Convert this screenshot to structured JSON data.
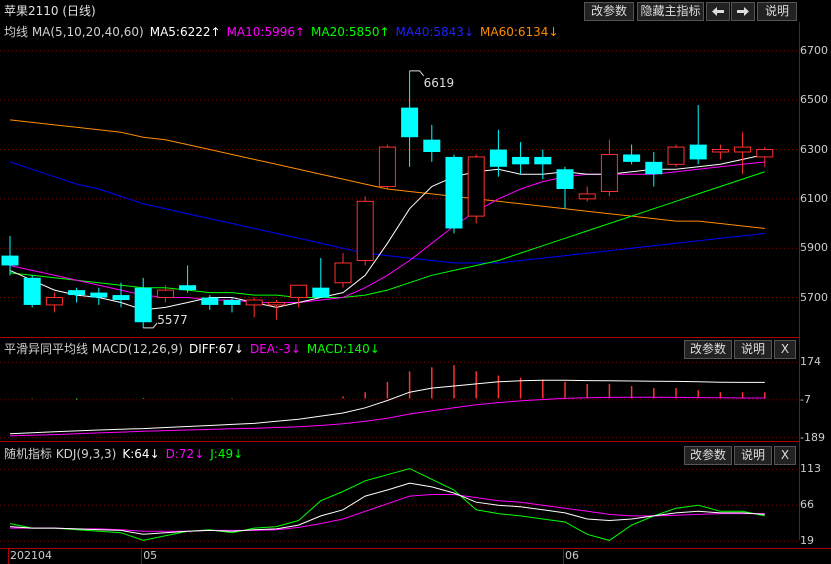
{
  "header": {
    "title": "苹果2110 (日线)",
    "buttons": [
      "改参数",
      "隐藏主指标",
      "说明"
    ]
  },
  "main_panel": {
    "ma_prefix": "均线 MA(5,10,20,40,60)",
    "ma5": "MA5:6222",
    "ma10": "MA10:5996",
    "ma20": "MA20:5850",
    "ma40": "MA40:5843",
    "ma60": "MA60:6134",
    "high_label": "6619",
    "low_label": "5577",
    "yticks": [
      "6700",
      "6500",
      "6300",
      "6100",
      "5900",
      "5700"
    ]
  },
  "macd_panel": {
    "prefix": "平滑异同平均线 MACD(12,26,9)",
    "diff": "DIFF:67",
    "dea": "DEA:-3",
    "macd": "MACD:140",
    "buttons": [
      "改参数",
      "说明",
      "X"
    ],
    "yticks": [
      "174",
      "-7",
      "-189"
    ]
  },
  "kdj_panel": {
    "prefix": "随机指标 KDJ(9,3,3)",
    "k": "K:64",
    "d": "D:72",
    "j": "J:49",
    "buttons": [
      "改参数",
      "说明",
      "X"
    ],
    "yticks": [
      "113",
      "66",
      "19"
    ]
  },
  "xaxis": {
    "labels": [
      "202104",
      "05",
      "06"
    ]
  },
  "colors": {
    "up": "#ff3030",
    "down": "#00ffff",
    "ma5": "#ffffff",
    "ma10": "#ff00ff",
    "ma20": "#00ff00",
    "ma40": "#0000ff",
    "ma60": "#ff8c00"
  },
  "chart_data": {
    "type": "candlestick",
    "ylim": [
      5540,
      6740
    ],
    "candles": [
      {
        "o": 5870,
        "h": 5950,
        "l": 5790,
        "c": 5830
      },
      {
        "o": 5780,
        "h": 5790,
        "l": 5660,
        "c": 5670
      },
      {
        "o": 5670,
        "h": 5720,
        "l": 5640,
        "c": 5700
      },
      {
        "o": 5730,
        "h": 5740,
        "l": 5680,
        "c": 5710
      },
      {
        "o": 5720,
        "h": 5740,
        "l": 5670,
        "c": 5700
      },
      {
        "o": 5710,
        "h": 5760,
        "l": 5660,
        "c": 5690
      },
      {
        "o": 5740,
        "h": 5780,
        "l": 5577,
        "c": 5600
      },
      {
        "o": 5700,
        "h": 5750,
        "l": 5680,
        "c": 5730
      },
      {
        "o": 5750,
        "h": 5830,
        "l": 5720,
        "c": 5730
      },
      {
        "o": 5700,
        "h": 5710,
        "l": 5650,
        "c": 5670
      },
      {
        "o": 5690,
        "h": 5700,
        "l": 5640,
        "c": 5670
      },
      {
        "o": 5670,
        "h": 5700,
        "l": 5620,
        "c": 5690
      },
      {
        "o": 5670,
        "h": 5690,
        "l": 5610,
        "c": 5680
      },
      {
        "o": 5700,
        "h": 5750,
        "l": 5660,
        "c": 5750
      },
      {
        "o": 5740,
        "h": 5860,
        "l": 5700,
        "c": 5700
      },
      {
        "o": 5760,
        "h": 5880,
        "l": 5740,
        "c": 5840
      },
      {
        "o": 5850,
        "h": 6110,
        "l": 5830,
        "c": 6090
      },
      {
        "o": 6150,
        "h": 6320,
        "l": 6140,
        "c": 6310
      },
      {
        "o": 6470,
        "h": 6619,
        "l": 6230,
        "c": 6350
      },
      {
        "o": 6340,
        "h": 6400,
        "l": 6250,
        "c": 6290
      },
      {
        "o": 6270,
        "h": 6280,
        "l": 5960,
        "c": 5980
      },
      {
        "o": 6030,
        "h": 6280,
        "l": 6000,
        "c": 6270
      },
      {
        "o": 6300,
        "h": 6380,
        "l": 6190,
        "c": 6230
      },
      {
        "o": 6270,
        "h": 6330,
        "l": 6200,
        "c": 6240
      },
      {
        "o": 6270,
        "h": 6300,
        "l": 6180,
        "c": 6240
      },
      {
        "o": 6220,
        "h": 6230,
        "l": 6060,
        "c": 6140
      },
      {
        "o": 6100,
        "h": 6150,
        "l": 6090,
        "c": 6120
      },
      {
        "o": 6130,
        "h": 6340,
        "l": 6110,
        "c": 6280
      },
      {
        "o": 6280,
        "h": 6320,
        "l": 6240,
        "c": 6250
      },
      {
        "o": 6250,
        "h": 6290,
        "l": 6150,
        "c": 6200
      },
      {
        "o": 6240,
        "h": 6320,
        "l": 6230,
        "c": 6310
      },
      {
        "o": 6320,
        "h": 6480,
        "l": 6240,
        "c": 6260
      },
      {
        "o": 6290,
        "h": 6320,
        "l": 6260,
        "c": 6300
      },
      {
        "o": 6290,
        "h": 6370,
        "l": 6200,
        "c": 6310
      },
      {
        "o": 6270,
        "h": 6310,
        "l": 6230,
        "c": 6300
      }
    ],
    "ma5": [
      5810,
      5770,
      5730,
      5710,
      5700,
      5680,
      5650,
      5660,
      5680,
      5700,
      5700,
      5680,
      5660,
      5680,
      5700,
      5720,
      5790,
      5920,
      6060,
      6150,
      6190,
      6210,
      6220,
      6200,
      6200,
      6210,
      6200,
      6200,
      6210,
      6220,
      6220,
      6230,
      6240,
      6260,
      6280
    ],
    "ma10": [
      5830,
      5810,
      5790,
      5770,
      5750,
      5730,
      5710,
      5700,
      5700,
      5690,
      5690,
      5680,
      5680,
      5680,
      5690,
      5700,
      5740,
      5790,
      5850,
      5920,
      5990,
      6050,
      6100,
      6140,
      6170,
      6190,
      6200,
      6200,
      6200,
      6200,
      6210,
      6220,
      6230,
      6240,
      6250
    ],
    "ma20": [
      5800,
      5790,
      5780,
      5770,
      5760,
      5750,
      5740,
      5740,
      5730,
      5720,
      5720,
      5710,
      5710,
      5700,
      5700,
      5700,
      5710,
      5730,
      5760,
      5790,
      5810,
      5830,
      5850,
      5880,
      5910,
      5940,
      5970,
      6000,
      6030,
      6060,
      6090,
      6120,
      6150,
      6180,
      6210
    ],
    "ma40": [
      6250,
      6220,
      6190,
      6160,
      6140,
      6110,
      6080,
      6060,
      6040,
      6020,
      6000,
      5980,
      5960,
      5940,
      5920,
      5900,
      5880,
      5870,
      5860,
      5850,
      5840,
      5840,
      5840,
      5850,
      5860,
      5870,
      5880,
      5890,
      5900,
      5910,
      5920,
      5930,
      5940,
      5950,
      5960
    ],
    "ma60": [
      6420,
      6410,
      6400,
      6390,
      6380,
      6370,
      6350,
      6340,
      6320,
      6300,
      6280,
      6260,
      6240,
      6220,
      6200,
      6180,
      6160,
      6140,
      6130,
      6120,
      6110,
      6100,
      6090,
      6080,
      6070,
      6060,
      6050,
      6040,
      6030,
      6020,
      6010,
      6010,
      6000,
      5990,
      5980
    ],
    "macd": {
      "ylim": [
        -200,
        185
      ],
      "bars": [
        0,
        -2,
        0,
        -5,
        0,
        0,
        -3,
        0,
        0,
        0,
        -2,
        0,
        0,
        0,
        0,
        10,
        30,
        80,
        130,
        150,
        160,
        130,
        110,
        100,
        90,
        80,
        70,
        70,
        60,
        50,
        50,
        40,
        30,
        30,
        30
      ],
      "diff": [
        -170,
        -165,
        -160,
        -156,
        -152,
        -148,
        -145,
        -140,
        -135,
        -130,
        -125,
        -120,
        -110,
        -100,
        -85,
        -70,
        -45,
        -10,
        30,
        50,
        60,
        70,
        80,
        85,
        88,
        88,
        86,
        85,
        84,
        83,
        82,
        80,
        78,
        77,
        77
      ],
      "dea": [
        -180,
        -177,
        -174,
        -170,
        -166,
        -162,
        -158,
        -155,
        -152,
        -149,
        -146,
        -143,
        -140,
        -136,
        -130,
        -122,
        -110,
        -95,
        -75,
        -60,
        -45,
        -30,
        -20,
        -12,
        -5,
        0,
        3,
        5,
        6,
        6,
        5,
        4,
        3,
        2,
        2
      ]
    },
    "kdj": {
      "ylim": [
        10,
        120
      ],
      "k": [
        38,
        36,
        36,
        35,
        34,
        33,
        28,
        30,
        32,
        33,
        32,
        34,
        35,
        40,
        52,
        60,
        78,
        86,
        95,
        90,
        82,
        70,
        66,
        64,
        60,
        56,
        48,
        46,
        48,
        52,
        56,
        58,
        56,
        56,
        54
      ],
      "d": [
        36,
        36,
        36,
        35,
        35,
        34,
        32,
        32,
        32,
        33,
        33,
        33,
        34,
        37,
        42,
        48,
        58,
        68,
        78,
        80,
        80,
        76,
        72,
        70,
        66,
        62,
        58,
        54,
        52,
        52,
        53,
        54,
        55,
        55,
        55
      ],
      "j": [
        42,
        36,
        36,
        34,
        32,
        30,
        20,
        26,
        32,
        34,
        30,
        36,
        38,
        46,
        72,
        84,
        98,
        106,
        114,
        100,
        86,
        60,
        55,
        52,
        48,
        44,
        28,
        20,
        40,
        52,
        62,
        66,
        58,
        58,
        52
      ]
    }
  }
}
